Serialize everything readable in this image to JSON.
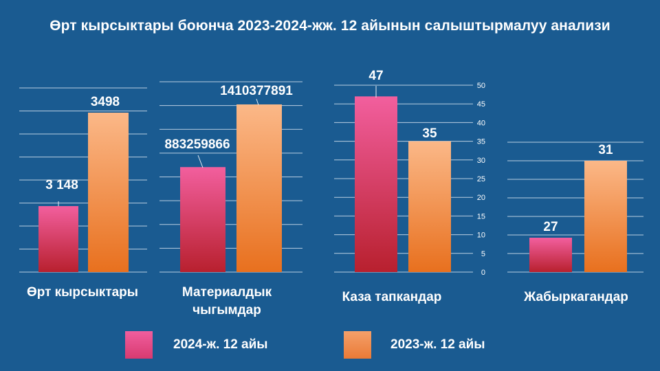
{
  "title": "Өрт кырсыктары боюнча 2023-2024-жж. 12 айынын салыштырмалуу анализи",
  "legend": [
    {
      "label": "2024-ж. 12 айы",
      "color": "#e8548a"
    },
    {
      "label": "2023-ж. 12 айы",
      "color": "#f08a4a"
    }
  ],
  "chart_data": [
    {
      "type": "bar",
      "category": "Өрт кырсыктары",
      "series": [
        {
          "name": "2024-ж. 12 айы",
          "value": 3148,
          "label": "3 148"
        },
        {
          "name": "2023-ж. 12 айы",
          "value": 3498,
          "label": "3498"
        }
      ]
    },
    {
      "type": "bar",
      "category": "Материалдык чыгымдар",
      "series": [
        {
          "name": "2024-ж. 12 айы",
          "value": 883259866,
          "label": "883259866"
        },
        {
          "name": "2023-ж. 12 айы",
          "value": 1410377891,
          "label": "1410377891"
        }
      ]
    },
    {
      "type": "bar",
      "category": "Каза тапкандар",
      "series": [
        {
          "name": "2024-ж. 12 айы",
          "value": 47,
          "label": "47"
        },
        {
          "name": "2023-ж. 12 айы",
          "value": 35,
          "label": "35"
        }
      ],
      "ylim": [
        0,
        50
      ],
      "yticks": [
        "0",
        "5",
        "10",
        "15",
        "20",
        "25",
        "30",
        "35",
        "40",
        "45",
        "50"
      ]
    },
    {
      "type": "bar",
      "category": "Жабыркагандар",
      "series": [
        {
          "name": "2024-ж. 12 айы",
          "value": 27,
          "label": "27"
        },
        {
          "name": "2023-ж. 12 айы",
          "value": 31,
          "label": "31"
        }
      ]
    }
  ]
}
